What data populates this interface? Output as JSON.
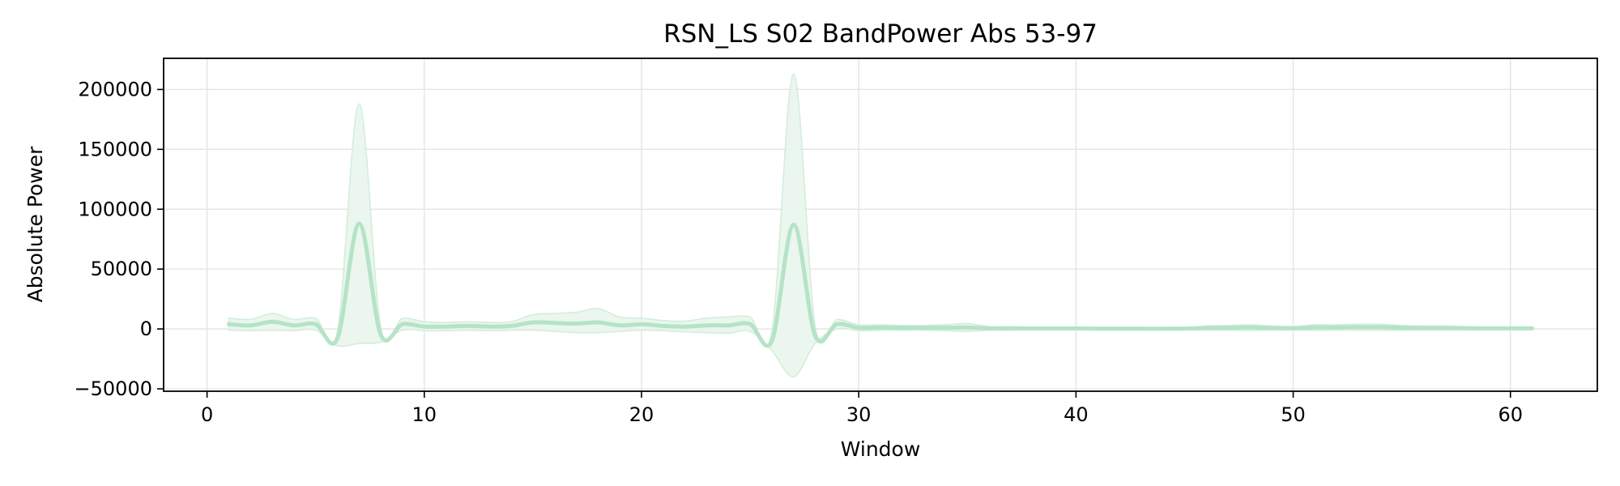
{
  "chart_data": {
    "type": "line",
    "title": "RSN_LS S02 BandPower Abs 53-97",
    "xlabel": "Window",
    "ylabel": "Absolute Power",
    "xlim": [
      -2,
      64
    ],
    "ylim": [
      -52000,
      226000
    ],
    "x_ticks": [
      0,
      10,
      20,
      30,
      40,
      50,
      60
    ],
    "x_tick_labels": [
      "0",
      "10",
      "20",
      "30",
      "40",
      "50",
      "60"
    ],
    "y_ticks": [
      -50000,
      0,
      50000,
      100000,
      150000,
      200000
    ],
    "y_tick_labels": [
      "−50000",
      "0",
      "50000",
      "100000",
      "150000",
      "200000"
    ],
    "grid": true,
    "line_color": "#b5e3c6",
    "band_color": "#e8f5ec",
    "band_edge_color": "#d2eddb",
    "series": [
      {
        "x": [
          1,
          2,
          3,
          4,
          5,
          6,
          7,
          8,
          9,
          10,
          11,
          12,
          13,
          14,
          15,
          16,
          17,
          18,
          19,
          20,
          21,
          22,
          23,
          24,
          25,
          26,
          27,
          28,
          29,
          30,
          31,
          32,
          33,
          34,
          35,
          36,
          37,
          38,
          39,
          40,
          41,
          42,
          43,
          44,
          45,
          46,
          47,
          48,
          49,
          50,
          51,
          52,
          53,
          54,
          55,
          56,
          57,
          58,
          59,
          60,
          61
        ],
        "mean": [
          4000,
          3000,
          6000,
          3000,
          4000,
          -8000,
          88000,
          -5000,
          4000,
          2000,
          2000,
          2500,
          2000,
          2500,
          5500,
          5000,
          4500,
          5500,
          3000,
          4000,
          2500,
          2000,
          3000,
          3000,
          4000,
          -10000,
          87000,
          -6000,
          4000,
          1000,
          1200,
          1000,
          1000,
          1000,
          1200,
          500,
          500,
          400,
          400,
          400,
          300,
          300,
          200,
          200,
          300,
          800,
          1000,
          1200,
          800,
          600,
          1200,
          1300,
          1500,
          1500,
          1000,
          800,
          800,
          600,
          500,
          500,
          500
        ],
        "upper": [
          9000,
          8000,
          13000,
          8000,
          9000,
          -2000,
          188000,
          1000,
          9000,
          6000,
          5500,
          6000,
          5500,
          6000,
          12000,
          13000,
          14000,
          17000,
          10000,
          9000,
          7000,
          6500,
          9000,
          10000,
          10000,
          -2000,
          213000,
          2000,
          8000,
          3500,
          3500,
          3000,
          3000,
          3500,
          4500,
          2000,
          2000,
          1500,
          1500,
          1500,
          1200,
          1200,
          1000,
          1000,
          1200,
          2500,
          3000,
          3500,
          2500,
          2000,
          3500,
          3500,
          4000,
          4000,
          3000,
          2500,
          2500,
          2000,
          1500,
          1500,
          1500
        ],
        "lower": [
          -1000,
          -1500,
          -1000,
          -1500,
          -1000,
          -14000,
          -12000,
          -11000,
          -1000,
          -1500,
          -1500,
          -1000,
          -1500,
          -1000,
          -1000,
          -2000,
          -3000,
          -3000,
          -2000,
          -1000,
          -1500,
          -2500,
          -3000,
          -3500,
          -2000,
          -18000,
          -40000,
          -12000,
          0,
          -1500,
          -1000,
          -1000,
          -1000,
          -1500,
          -2000,
          -1000,
          -1000,
          -700,
          -700,
          -700,
          -600,
          -600,
          -600,
          -600,
          -600,
          -900,
          -1000,
          -1100,
          -900,
          -800,
          -1100,
          -900,
          -1000,
          -1000,
          -1000,
          -900,
          -900,
          -800,
          -500,
          -500,
          -500
        ]
      }
    ]
  }
}
